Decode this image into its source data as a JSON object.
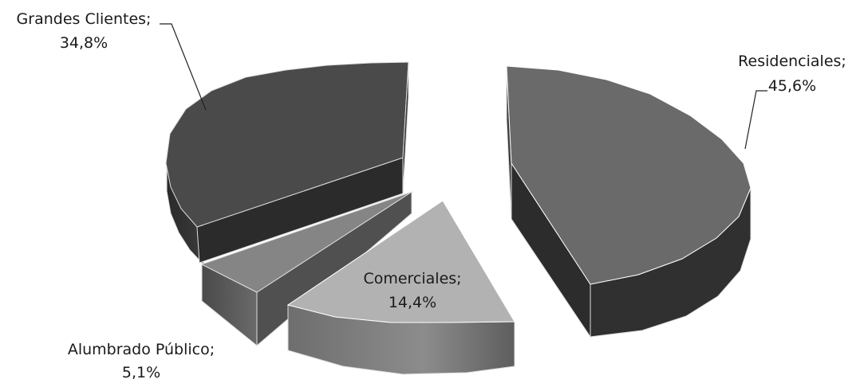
{
  "chart_data": {
    "type": "pie",
    "style": "3d-exploded",
    "title": "",
    "slices": [
      {
        "name": "Residenciales;",
        "value": 45.6,
        "label": "45,6%",
        "color": "#6a6a6a"
      },
      {
        "name": "Comerciales;",
        "value": 14.4,
        "label": "14,4%",
        "color": "#b2b2b2"
      },
      {
        "name": "Alumbrado Público;",
        "value": 5.1,
        "label": "5,1%",
        "color": "#858585"
      },
      {
        "name": "Grandes Clientes;",
        "value": 34.8,
        "label": "34,8%",
        "color": "#4a4a4a"
      }
    ]
  }
}
